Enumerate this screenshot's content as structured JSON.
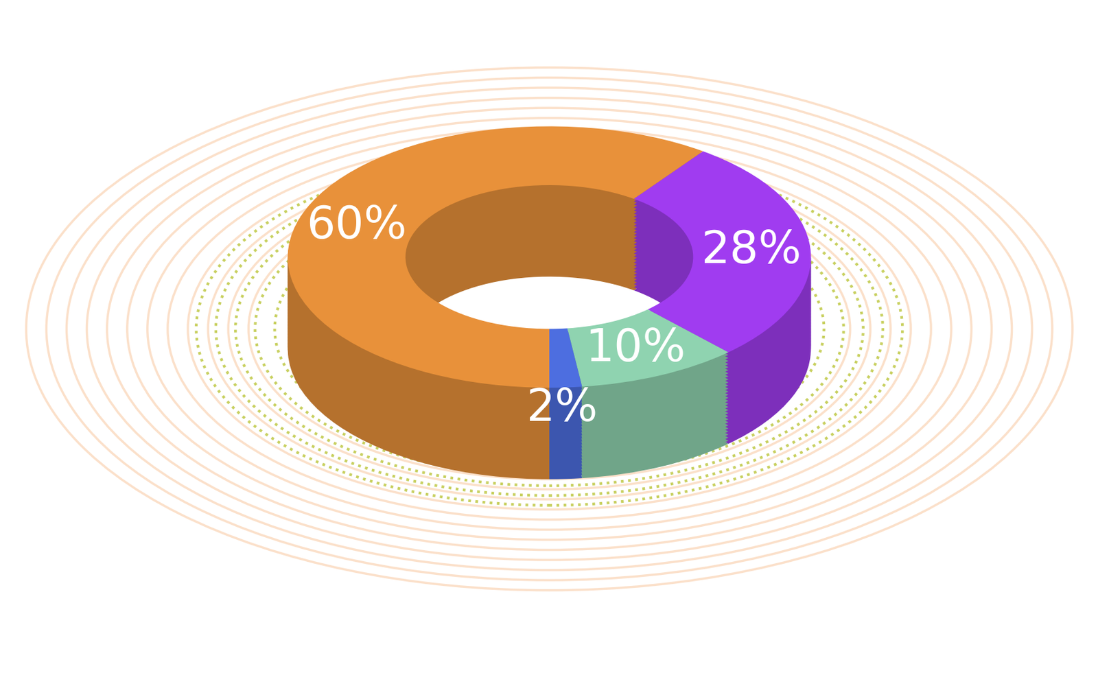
{
  "chart_data": {
    "type": "pie",
    "donut": true,
    "values": [
      60,
      28,
      10,
      2
    ],
    "value_labels": [
      "60%",
      "28%",
      "10%",
      "2%"
    ],
    "data_labels": true,
    "colors": [
      "#e8913a",
      "#a03cf0",
      "#8fd3b0",
      "#4d6ee0"
    ]
  }
}
